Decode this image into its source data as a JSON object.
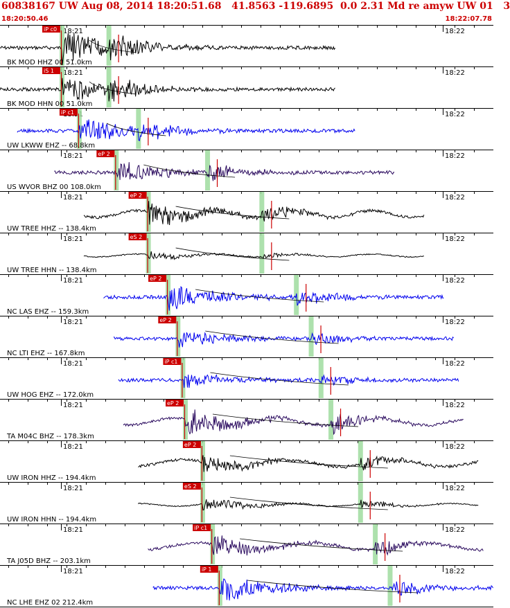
{
  "header": {
    "title": "60838167 UW Aug 08, 2014 18:20:51.68   41.8563 -119.6895  0.0 2.31 Md re amyw UW 01   3",
    "start_time": "18:20:50.46",
    "end_time": "18:22:07.78",
    "title_color": "#cc0000"
  },
  "colors": {
    "accent": "#cc0000",
    "blue_trace": "#0000ee",
    "purple_trace": "#2a0a5e",
    "black_trace": "#000000",
    "phase_band": "#9fdc9f"
  },
  "time_ticks": {
    "left": "18:21",
    "right": "18:22"
  },
  "traces": [
    {
      "label": "BK MOD HHZ 00 51.0km",
      "pick": "iP c0",
      "color": "black",
      "start": 0.0,
      "end": 0.68,
      "p": 0.125,
      "s": 0.22,
      "amp": 3.0,
      "style": "eq"
    },
    {
      "label": "BK MOD HHN 00 51.0km",
      "pick": "iS 1",
      "color": "black",
      "start": 0.0,
      "end": 0.68,
      "p": 0.125,
      "s": 0.22,
      "amp": 2.2,
      "style": "eq"
    },
    {
      "label": "UW LKWW EHZ -- 68.8km",
      "pick": "iP c1",
      "color": "blue",
      "start": 0.035,
      "end": 0.72,
      "p": 0.16,
      "s": 0.28,
      "amp": 2.4,
      "style": "eq"
    },
    {
      "label": "US WVOR BHZ 00 108.0km",
      "pick": "eP 2",
      "color": "purple",
      "start": 0.11,
      "end": 0.8,
      "p": 0.235,
      "s": 0.42,
      "amp": 2.0,
      "style": "noisy"
    },
    {
      "label": "UW TREE HHZ -- 138.4km",
      "pick": "eP 2",
      "color": "black",
      "start": 0.17,
      "end": 0.86,
      "p": 0.3,
      "s": 0.53,
      "amp": 2.0,
      "style": "wave"
    },
    {
      "label": "UW TREE HHN -- 138.4km",
      "pick": "eS 2",
      "color": "black",
      "start": 0.17,
      "end": 0.86,
      "p": 0.3,
      "s": 0.53,
      "amp": 0.6,
      "style": "quiet"
    },
    {
      "label": "NC LAS EHZ -- 159.3km",
      "pick": "eP 2",
      "color": "blue",
      "start": 0.21,
      "end": 0.9,
      "p": 0.34,
      "s": 0.6,
      "amp": 2.2,
      "style": "noisy"
    },
    {
      "label": "NC LTI EHZ -- 167.8km",
      "pick": "eP 2",
      "color": "blue",
      "start": 0.23,
      "end": 0.92,
      "p": 0.36,
      "s": 0.63,
      "amp": 1.4,
      "style": "noisy"
    },
    {
      "label": "UW HOG EHZ -- 172.0km",
      "pick": "iP c1",
      "color": "blue",
      "start": 0.24,
      "end": 0.93,
      "p": 0.37,
      "s": 0.65,
      "amp": 1.2,
      "style": "noisy"
    },
    {
      "label": "TA M04C BHZ -- 178.3km",
      "pick": "eP 2",
      "color": "purple",
      "start": 0.25,
      "end": 0.94,
      "p": 0.375,
      "s": 0.67,
      "amp": 2.4,
      "style": "wave"
    },
    {
      "label": "UW IRON HHZ -- 194.4km",
      "pick": "eP 2",
      "color": "black",
      "start": 0.28,
      "end": 0.97,
      "p": 0.41,
      "s": 0.73,
      "amp": 1.6,
      "style": "wave"
    },
    {
      "label": "UW IRON HHN -- 194.4km",
      "pick": "eS 2",
      "color": "black",
      "start": 0.28,
      "end": 0.97,
      "p": 0.41,
      "s": 0.73,
      "amp": 1.0,
      "style": "quiet"
    },
    {
      "label": "TA J05D BHZ -- 203.1km",
      "pick": "iP c1",
      "color": "purple",
      "start": 0.3,
      "end": 0.98,
      "p": 0.43,
      "s": 0.76,
      "amp": 1.8,
      "style": "wave"
    },
    {
      "label": "NC LHE EHZ 02 212.4km",
      "pick": "iP 1",
      "color": "blue",
      "start": 0.31,
      "end": 1.0,
      "p": 0.445,
      "s": 0.79,
      "amp": 2.4,
      "style": "noisy"
    }
  ]
}
